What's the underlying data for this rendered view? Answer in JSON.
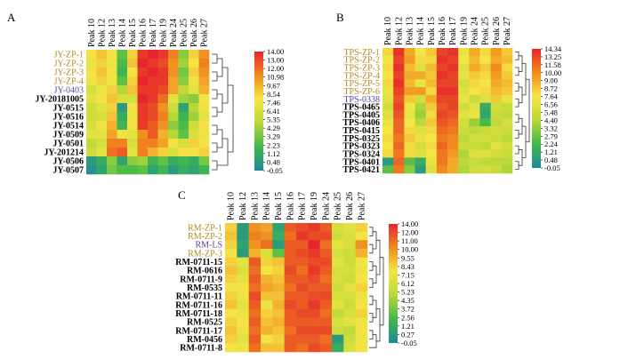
{
  "figure": "three clustered heatmap panels",
  "chart_data": [
    {
      "type": "heatmap",
      "panel_label": "A",
      "columns": [
        "Peak 10",
        "Peak 12",
        "Peak 13",
        "Peak 14",
        "Peak 15",
        "Peak 16",
        "Peak 17",
        "Peak 19",
        "Peak 24",
        "Peak 25",
        "Peak 26",
        "Peak 27"
      ],
      "rows": [
        {
          "label": "JY-ZP-1",
          "group": "ZP"
        },
        {
          "label": "JY-ZP-2",
          "group": "ZP"
        },
        {
          "label": "JY-ZP-3",
          "group": "ZP"
        },
        {
          "label": "JY-ZP-4",
          "group": "ZP"
        },
        {
          "label": "JY-0403",
          "group": "LS"
        },
        {
          "label": "JY-20181005",
          "group": "sample"
        },
        {
          "label": "JY-0515",
          "group": "sample"
        },
        {
          "label": "JY-0516",
          "group": "sample"
        },
        {
          "label": "JY-0514",
          "group": "sample"
        },
        {
          "label": "JY-0509",
          "group": "sample"
        },
        {
          "label": "JY-0501",
          "group": "sample"
        },
        {
          "label": "JY-201214",
          "group": "sample"
        },
        {
          "label": "JY-0506",
          "group": "sample"
        },
        {
          "label": "JY-0507",
          "group": "sample"
        }
      ],
      "values": [
        [
          8.5,
          9.5,
          8.5,
          3.5,
          9.0,
          13.5,
          14.0,
          13.5,
          11.5,
          4.5,
          9.0,
          11.0
        ],
        [
          8.0,
          9.0,
          8.0,
          3.0,
          9.5,
          14.0,
          13.5,
          13.0,
          11.0,
          5.0,
          8.5,
          11.5
        ],
        [
          8.5,
          9.5,
          8.5,
          2.5,
          8.5,
          13.5,
          14.0,
          13.5,
          11.0,
          4.0,
          9.0,
          11.0
        ],
        [
          8.0,
          9.0,
          8.0,
          3.5,
          9.0,
          14.0,
          13.5,
          13.5,
          10.5,
          4.5,
          8.0,
          10.5
        ],
        [
          7.0,
          8.0,
          9.0,
          5.5,
          9.5,
          13.5,
          13.5,
          13.0,
          10.5,
          6.0,
          7.5,
          10.0
        ],
        [
          7.5,
          8.5,
          9.5,
          7.0,
          7.0,
          14.0,
          13.5,
          12.0,
          7.5,
          5.0,
          4.5,
          8.5
        ],
        [
          6.5,
          7.5,
          9.0,
          1.0,
          8.5,
          13.5,
          13.0,
          11.0,
          6.5,
          1.5,
          5.5,
          8.0
        ],
        [
          6.5,
          7.0,
          9.5,
          2.0,
          8.0,
          13.5,
          13.0,
          11.5,
          5.5,
          2.5,
          5.0,
          7.5
        ],
        [
          7.0,
          8.0,
          10.0,
          2.5,
          8.5,
          13.5,
          12.5,
          11.0,
          4.5,
          3.0,
          6.5,
          8.5
        ],
        [
          7.5,
          7.5,
          10.5,
          8.0,
          7.5,
          11.0,
          12.5,
          10.0,
          5.5,
          3.5,
          7.0,
          8.0
        ],
        [
          6.0,
          7.0,
          11.5,
          11.5,
          7.0,
          11.5,
          11.5,
          10.5,
          8.5,
          7.0,
          9.0,
          8.5
        ],
        [
          6.5,
          7.5,
          12.0,
          12.5,
          7.5,
          11.5,
          10.0,
          9.0,
          7.0,
          8.5,
          8.5,
          9.0
        ],
        [
          1.0,
          2.0,
          4.5,
          1.5,
          4.5,
          5.0,
          2.5,
          3.5,
          2.0,
          2.5,
          2.0,
          4.0
        ],
        [
          0.5,
          1.5,
          4.0,
          3.0,
          3.0,
          3.5,
          1.5,
          2.5,
          1.0,
          2.0,
          1.5,
          2.5
        ]
      ],
      "colorbar_ticks": [
        "14.00",
        "13.00",
        "12.00",
        "10.98",
        "9.67",
        "8.54",
        "7.46",
        "6.41",
        "5.35",
        "4.29",
        "3.29",
        "2.23",
        "1.12",
        "0.48",
        "-0.05"
      ],
      "vmin": -0.05,
      "vmax": 14.0
    },
    {
      "type": "heatmap",
      "panel_label": "B",
      "columns": [
        "Peak 10",
        "Peak 12",
        "Peak 13",
        "Peak 14",
        "Peak 15",
        "Peak 16",
        "Peak 17",
        "Peak 19",
        "Peak 24",
        "Peak 25",
        "Peak 26",
        "Peak 27"
      ],
      "rows": [
        {
          "label": "TPS-ZP-1",
          "group": "ZP"
        },
        {
          "label": "TPS-ZP-2",
          "group": "ZP"
        },
        {
          "label": "TPS-ZP-3",
          "group": "ZP"
        },
        {
          "label": "TPS-ZP-4",
          "group": "ZP"
        },
        {
          "label": "TPS-ZP-5",
          "group": "ZP"
        },
        {
          "label": "TPS-ZP-6",
          "group": "ZP"
        },
        {
          "label": "TPS-0338",
          "group": "LS"
        },
        {
          "label": "TPS-0465",
          "group": "sample"
        },
        {
          "label": "TPS-0405",
          "group": "sample"
        },
        {
          "label": "TPS-0406",
          "group": "sample"
        },
        {
          "label": "TPS-0415",
          "group": "sample"
        },
        {
          "label": "TPS-0325",
          "group": "sample"
        },
        {
          "label": "TPS-0323",
          "group": "sample"
        },
        {
          "label": "TPS-0324",
          "group": "sample"
        },
        {
          "label": "TPS-0401",
          "group": "sample"
        },
        {
          "label": "TPS-0421",
          "group": "sample"
        }
      ],
      "values": [
        [
          9.0,
          14.0,
          10.5,
          8.5,
          9.5,
          13.5,
          14.0,
          8.0,
          10.5,
          9.0,
          11.0,
          9.5
        ],
        [
          8.5,
          13.5,
          11.0,
          9.0,
          9.0,
          14.0,
          13.5,
          8.5,
          10.0,
          8.5,
          10.5,
          10.0
        ],
        [
          9.0,
          14.0,
          10.0,
          7.5,
          10.0,
          13.5,
          14.0,
          7.5,
          10.5,
          9.5,
          11.5,
          9.0
        ],
        [
          8.5,
          13.5,
          10.5,
          10.5,
          9.5,
          14.0,
          13.5,
          8.0,
          9.5,
          9.0,
          11.0,
          9.5
        ],
        [
          9.0,
          14.0,
          10.0,
          8.0,
          10.0,
          13.5,
          13.5,
          7.0,
          9.0,
          8.5,
          10.5,
          10.0
        ],
        [
          8.0,
          13.5,
          11.0,
          11.0,
          9.0,
          14.0,
          14.0,
          7.5,
          8.5,
          9.0,
          10.0,
          9.5
        ],
        [
          7.5,
          13.0,
          9.5,
          7.0,
          10.5,
          13.5,
          13.5,
          8.0,
          6.5,
          7.5,
          9.5,
          8.0
        ],
        [
          7.0,
          13.5,
          8.5,
          5.5,
          9.5,
          13.0,
          13.5,
          7.0,
          7.5,
          2.0,
          7.0,
          6.5
        ],
        [
          7.5,
          13.0,
          8.0,
          5.0,
          9.0,
          13.5,
          13.0,
          7.5,
          8.0,
          1.5,
          6.5,
          6.0
        ],
        [
          8.0,
          12.5,
          8.5,
          6.0,
          9.5,
          13.0,
          12.5,
          7.0,
          5.0,
          3.0,
          6.0,
          7.0
        ],
        [
          8.5,
          12.5,
          9.0,
          7.5,
          9.0,
          12.5,
          12.0,
          6.5,
          6.0,
          6.5,
          7.0,
          6.5
        ],
        [
          9.0,
          12.0,
          9.5,
          8.0,
          8.5,
          12.0,
          11.5,
          6.0,
          7.0,
          7.0,
          6.5,
          6.0
        ],
        [
          8.5,
          12.5,
          9.0,
          7.0,
          9.0,
          12.5,
          11.5,
          6.5,
          6.5,
          6.0,
          7.5,
          7.0
        ],
        [
          9.0,
          12.0,
          9.0,
          7.5,
          8.5,
          12.0,
          11.0,
          5.5,
          7.5,
          7.5,
          7.0,
          6.5
        ],
        [
          1.0,
          12.5,
          3.5,
          2.0,
          8.0,
          12.0,
          10.5,
          6.0,
          6.5,
          6.0,
          6.0,
          6.0
        ],
        [
          3.5,
          12.0,
          4.5,
          1.0,
          7.5,
          11.5,
          10.5,
          5.5,
          7.0,
          7.0,
          6.5,
          5.5
        ]
      ],
      "colorbar_ticks": [
        "14.34",
        "13.25",
        "11.58",
        "10.00",
        "9.00",
        "8.72",
        "7.64",
        "6.56",
        "5.48",
        "4.40",
        "3.32",
        "2.79",
        "2.24",
        "1.21",
        "0.48",
        "-0.05"
      ],
      "vmin": -0.05,
      "vmax": 14.34
    },
    {
      "type": "heatmap",
      "panel_label": "C",
      "columns": [
        "Peak 10",
        "Peak 12",
        "Peak 13",
        "Peak 14",
        "Peak 15",
        "Peak 16",
        "Peak 17",
        "Peak 19",
        "Peak 24",
        "Peak 25",
        "Peak 26",
        "Peak 27"
      ],
      "rows": [
        {
          "label": "RM-ZP-1",
          "group": "ZP"
        },
        {
          "label": "RM-ZP-2",
          "group": "ZP"
        },
        {
          "label": "RM-LS",
          "group": "LS"
        },
        {
          "label": "RM-ZP-3",
          "group": "ZP"
        },
        {
          "label": "RM-0711-15",
          "group": "sample"
        },
        {
          "label": "RM-0616",
          "group": "sample"
        },
        {
          "label": "RM-0711-9",
          "group": "sample"
        },
        {
          "label": "RM-0535",
          "group": "sample"
        },
        {
          "label": "RM-0711-11",
          "group": "sample"
        },
        {
          "label": "RM-0711-16",
          "group": "sample"
        },
        {
          "label": "RM-0711-18",
          "group": "sample"
        },
        {
          "label": "RM-0525",
          "group": "sample"
        },
        {
          "label": "RM-0711-17",
          "group": "sample"
        },
        {
          "label": "RM-0456",
          "group": "sample"
        },
        {
          "label": "RM-0711-8",
          "group": "sample"
        }
      ],
      "values": [
        [
          9.0,
          1.0,
          11.0,
          10.5,
          1.5,
          12.5,
          13.0,
          13.5,
          12.5,
          7.0,
          7.5,
          9.0
        ],
        [
          9.5,
          1.0,
          11.5,
          11.0,
          2.0,
          12.0,
          13.5,
          13.0,
          13.0,
          6.5,
          7.0,
          8.5
        ],
        [
          9.0,
          1.5,
          11.0,
          12.0,
          1.0,
          12.5,
          12.5,
          14.0,
          12.0,
          7.5,
          7.0,
          11.0
        ],
        [
          8.5,
          1.0,
          10.0,
          7.0,
          3.5,
          12.5,
          13.0,
          13.5,
          12.5,
          7.0,
          6.5,
          10.0
        ],
        [
          9.0,
          7.5,
          12.5,
          9.0,
          9.5,
          12.5,
          12.5,
          13.0,
          13.0,
          7.5,
          6.5,
          8.5
        ],
        [
          9.5,
          7.0,
          12.0,
          8.5,
          9.0,
          13.0,
          12.0,
          13.5,
          12.5,
          7.0,
          7.0,
          8.0
        ],
        [
          9.0,
          7.5,
          12.5,
          10.0,
          9.5,
          12.5,
          12.5,
          13.0,
          12.0,
          7.0,
          6.5,
          8.5
        ],
        [
          8.5,
          8.5,
          12.0,
          10.5,
          10.0,
          12.0,
          13.0,
          12.5,
          12.5,
          6.5,
          7.5,
          9.0
        ],
        [
          9.0,
          8.0,
          13.0,
          9.5,
          9.5,
          12.5,
          12.5,
          13.0,
          13.0,
          7.0,
          7.0,
          8.0
        ],
        [
          9.5,
          7.5,
          12.5,
          8.0,
          10.0,
          13.0,
          12.5,
          13.5,
          12.5,
          7.5,
          6.5,
          8.5
        ],
        [
          8.5,
          8.0,
          12.0,
          9.0,
          9.5,
          12.5,
          13.0,
          13.0,
          12.0,
          6.0,
          7.0,
          9.0
        ],
        [
          9.0,
          8.5,
          12.5,
          9.5,
          10.0,
          12.5,
          12.5,
          12.5,
          12.5,
          7.0,
          7.5,
          8.0
        ],
        [
          9.5,
          8.0,
          12.0,
          10.0,
          9.5,
          12.0,
          13.0,
          13.0,
          13.0,
          6.5,
          6.0,
          8.5
        ],
        [
          9.0,
          7.5,
          12.5,
          8.5,
          9.0,
          12.5,
          12.5,
          12.5,
          12.0,
          1.0,
          6.5,
          8.0
        ],
        [
          8.5,
          8.0,
          12.0,
          9.5,
          9.5,
          12.5,
          12.0,
          13.0,
          12.5,
          2.0,
          7.0,
          8.5
        ]
      ],
      "colorbar_ticks": [
        "14.00",
        "12.00",
        "11.00",
        "10.00",
        "9.55",
        "8.43",
        "7.15",
        "6.12",
        "5.23",
        "4.35",
        "3.72",
        "2.56",
        "1.21",
        "0.27",
        "-0.05"
      ],
      "vmin": -0.05,
      "vmax": 14.0
    }
  ],
  "colors": {
    "colormap": [
      "#1e8a9a",
      "#41b84b",
      "#b8d838",
      "#f5e646",
      "#f08c1e",
      "#e5262c"
    ],
    "zp_label": "#b58a22",
    "ls_label": "#5a44a8",
    "sample_label": "#000000"
  }
}
